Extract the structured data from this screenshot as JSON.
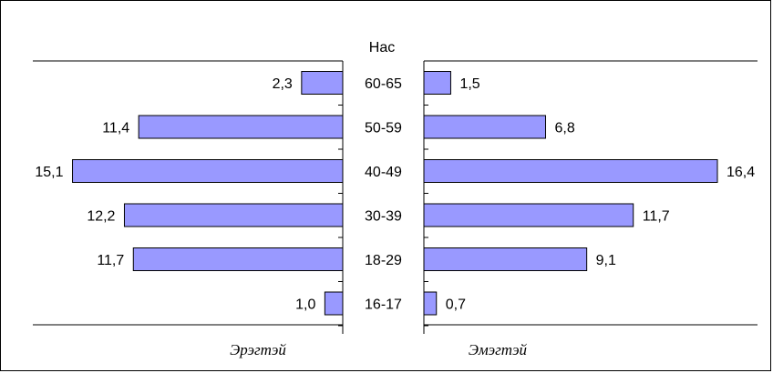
{
  "chart_data": {
    "type": "bar",
    "orientation": "horizontal",
    "layout": "population-pyramid",
    "title": "Нас",
    "categories": [
      "60-65",
      "50-59",
      "40-49",
      "30-39",
      "18-29",
      "16-17"
    ],
    "series": [
      {
        "name": "Эрэгтэй",
        "side": "left",
        "values": [
          2.3,
          11.4,
          15.1,
          12.2,
          11.7,
          1.0
        ],
        "labels": [
          "2,3",
          "11,4",
          "15,1",
          "12,2",
          "11,7",
          "1,0"
        ]
      },
      {
        "name": "Эмэгтэй",
        "side": "right",
        "values": [
          1.5,
          6.8,
          16.4,
          11.7,
          9.1,
          0.7
        ],
        "labels": [
          "1,5",
          "6,8",
          "16,4",
          "11,7",
          "9,1",
          "0,7"
        ]
      }
    ],
    "xlim": [
      0,
      16.4
    ],
    "grid": false,
    "legend": "bottom",
    "colors": {
      "bar_fill": "#9999ff",
      "bar_stroke": "#000000",
      "axis": "#000000"
    }
  }
}
